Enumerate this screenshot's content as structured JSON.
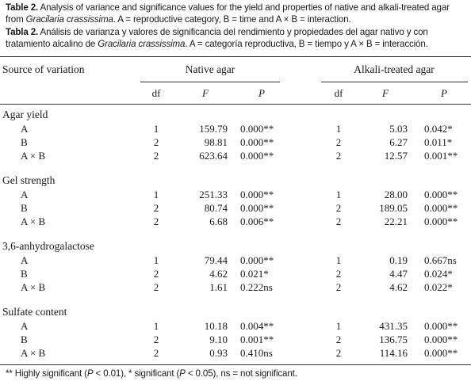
{
  "caption_en": {
    "label": "Table 2.",
    "text_1": " Analysis of variance and significance values for the yield and properties of native and alkali-treated agar from ",
    "species": "Gracilaria crassissima",
    "text_2": ". A = reproductive category, B = time and A × B = interaction."
  },
  "caption_es": {
    "label": "Tabla 2.",
    "text_1": " Análisis de varianza y valores de significancia del rendimiento y propiedades del agar nativo y con tratamiento alcalino de ",
    "species": "Gracilaria crassissima",
    "text_2": ". A = categoría reproductiva, B = tiempo y A × B = interacción."
  },
  "header": {
    "source": "Source of variation",
    "native": "Native agar",
    "alkali": "Alkali-treated agar",
    "df": "df",
    "f": "F",
    "p": "P"
  },
  "sections": [
    {
      "title": "Agar yield",
      "rows": [
        {
          "source": "A",
          "native": [
            "1",
            "159.79",
            "0.000**"
          ],
          "alkali": [
            "1",
            "5.03",
            "0.042*"
          ]
        },
        {
          "source": "B",
          "native": [
            "2",
            "98.81",
            "0.000**"
          ],
          "alkali": [
            "2",
            "6.27",
            "0.011*"
          ]
        },
        {
          "source": "A × B",
          "native": [
            "2",
            "623.64",
            "0.000**"
          ],
          "alkali": [
            "2",
            "12.57",
            "0.001**"
          ]
        }
      ]
    },
    {
      "title": "Gel strength",
      "rows": [
        {
          "source": "A",
          "native": [
            "1",
            "251.33",
            "0.000**"
          ],
          "alkali": [
            "1",
            "28.00",
            "0.000**"
          ]
        },
        {
          "source": "B",
          "native": [
            "2",
            "80.74",
            "0.000**"
          ],
          "alkali": [
            "2",
            "189.05",
            "0.000**"
          ]
        },
        {
          "source": "A × B",
          "native": [
            "2",
            "6.68",
            "0.006**"
          ],
          "alkali": [
            "2",
            "22.21",
            "0.000**"
          ]
        }
      ]
    },
    {
      "title": "3,6-anhydrogalactose",
      "rows": [
        {
          "source": "A",
          "native": [
            "1",
            "79.44",
            "0.000**"
          ],
          "alkali": [
            "1",
            "0.19",
            "0.667ns"
          ]
        },
        {
          "source": "B",
          "native": [
            "2",
            "4.62",
            "0.021*"
          ],
          "alkali": [
            "2",
            "4.47",
            "0.024*"
          ]
        },
        {
          "source": "A × B",
          "native": [
            "2",
            "1.61",
            "0.222ns"
          ],
          "alkali": [
            "2",
            "4.62",
            "0.022*"
          ]
        }
      ]
    },
    {
      "title": "Sulfate content",
      "rows": [
        {
          "source": "A",
          "native": [
            "1",
            "10.18",
            "0.004**"
          ],
          "alkali": [
            "1",
            "431.35",
            "0.000**"
          ]
        },
        {
          "source": "B",
          "native": [
            "2",
            "9.10",
            "0.001**"
          ],
          "alkali": [
            "2",
            "136.75",
            "0.000**"
          ]
        },
        {
          "source": "A × B",
          "native": [
            "2",
            "0.93",
            "0.410ns"
          ],
          "alkali": [
            "2",
            "114.16",
            "0.000**"
          ]
        }
      ]
    }
  ],
  "footnote": {
    "prefix": "** Highly significant (",
    "p1": "P",
    "mid1": " < 0.01), * significant (",
    "p2": "P",
    "mid2": " < 0.05), ns = not significant."
  }
}
